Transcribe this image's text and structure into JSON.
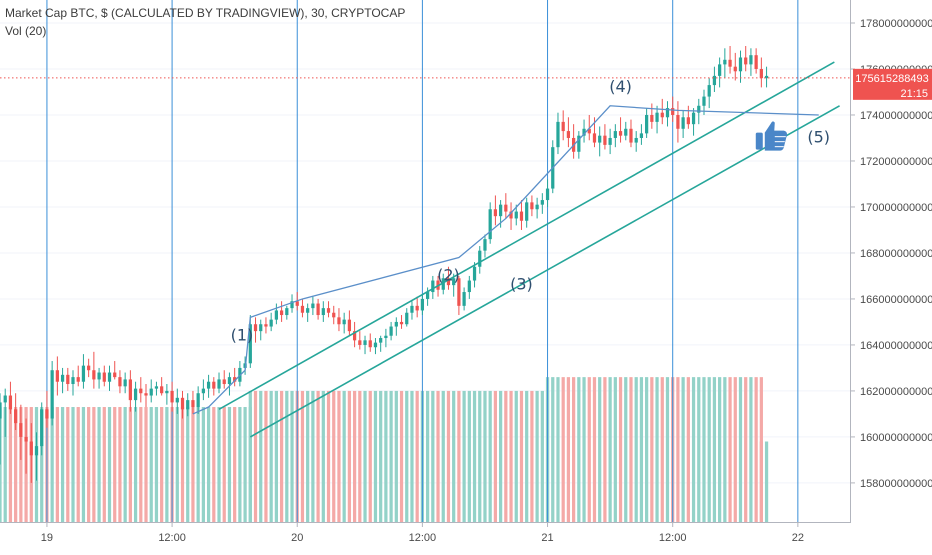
{
  "legend": {
    "title": "Market Cap BTC, $ (CALCULATED BY TRADINGVIEW), 30, CRYPTOCAP",
    "volume": "Vol (20)"
  },
  "price_tag": {
    "value": "175615288493",
    "countdown": "21:15"
  },
  "colors": {
    "up": "#26a69a",
    "down": "#ef5350",
    "vol_up": "#93d2c8",
    "vol_down": "#f4a9a7",
    "trend_line": "#26a69a",
    "wave_line": "#5b8fc9",
    "session_line": "#3a8fd8",
    "price_line": "#ef5350",
    "thumb": "#4a86c8"
  },
  "icons": [
    "thumbs-up-icon"
  ],
  "chart_data": {
    "type": "candlestick",
    "y_axis": {
      "ticks": [
        158000000000,
        160000000000,
        162000000000,
        164000000000,
        166000000000,
        168000000000,
        170000000000,
        172000000000,
        174000000000,
        176000000000,
        178000000000
      ],
      "tick_labels": [
        "158000000000",
        "160000000000",
        "162000000000",
        "164000000000",
        "166000000000",
        "168000000000",
        "170000000000",
        "172000000000",
        "174000000000",
        "176000000000",
        "178000000000"
      ],
      "range": [
        156300000000,
        179000000000
      ]
    },
    "x_axis": {
      "tick_labels": [
        "19",
        "12:00",
        "20",
        "12:00",
        "21",
        "12:00",
        "22"
      ],
      "tick_hours": [
        24,
        36,
        48,
        60,
        72,
        84,
        96
      ],
      "range_hours": [
        19.5,
        101
      ]
    },
    "last_price": 175615288493,
    "candles": [
      [
        19.5,
        160.8,
        161.9,
        158.8,
        161.5
      ],
      [
        20.0,
        161.5,
        162.1,
        160.0,
        161.8
      ],
      [
        20.5,
        161.8,
        162.4,
        161.0,
        161.2
      ],
      [
        21.0,
        161.2,
        161.9,
        160.3,
        160.6
      ],
      [
        21.5,
        160.6,
        161.4,
        159.0,
        160.0
      ],
      [
        22.0,
        160.0,
        160.8,
        158.4,
        159.8
      ],
      [
        22.5,
        159.8,
        160.6,
        158.0,
        159.2
      ],
      [
        23.0,
        159.2,
        160.2,
        158.1,
        159.6
      ],
      [
        23.5,
        159.6,
        161.5,
        159.2,
        161.2
      ],
      [
        24.0,
        161.2,
        162.0,
        160.4,
        160.8
      ],
      [
        24.5,
        160.8,
        163.3,
        160.5,
        162.9
      ],
      [
        25.0,
        162.9,
        163.5,
        161.8,
        162.4
      ],
      [
        25.5,
        162.4,
        163.0,
        161.9,
        162.7
      ],
      [
        26.0,
        162.7,
        163.0,
        162.0,
        162.3
      ],
      [
        26.5,
        162.3,
        162.9,
        161.8,
        162.6
      ],
      [
        27.0,
        162.6,
        163.1,
        162.2,
        162.4
      ],
      [
        27.5,
        162.4,
        163.6,
        162.1,
        163.1
      ],
      [
        28.0,
        163.1,
        163.4,
        162.6,
        162.9
      ],
      [
        28.5,
        162.9,
        163.7,
        162.1,
        162.5
      ],
      [
        29.0,
        162.5,
        163.0,
        162.1,
        162.8
      ],
      [
        29.5,
        162.8,
        163.1,
        162.2,
        162.4
      ],
      [
        30.0,
        162.4,
        163.1,
        162.0,
        162.8
      ],
      [
        30.5,
        162.8,
        163.3,
        162.5,
        162.6
      ],
      [
        31.0,
        162.6,
        162.9,
        161.9,
        162.2
      ],
      [
        31.5,
        162.2,
        162.8,
        161.9,
        162.5
      ],
      [
        32.0,
        162.5,
        162.9,
        161.1,
        161.6
      ],
      [
        32.5,
        161.6,
        162.4,
        161.1,
        162.1
      ],
      [
        33.0,
        162.1,
        162.6,
        161.5,
        161.9
      ],
      [
        33.5,
        161.9,
        162.3,
        161.3,
        161.8
      ],
      [
        34.0,
        161.8,
        162.5,
        161.5,
        162.1
      ],
      [
        34.5,
        162.1,
        162.4,
        161.8,
        162.2
      ],
      [
        35.0,
        162.2,
        162.6,
        161.8,
        161.9
      ],
      [
        35.5,
        161.9,
        162.3,
        161.4,
        162.0
      ],
      [
        36.0,
        162.0,
        162.4,
        161.1,
        161.5
      ],
      [
        36.5,
        161.5,
        162.1,
        161.0,
        161.7
      ],
      [
        37.0,
        161.7,
        162.0,
        160.8,
        161.2
      ],
      [
        37.5,
        161.2,
        161.9,
        160.9,
        161.6
      ],
      [
        38.0,
        161.6,
        162.0,
        161.0,
        161.3
      ],
      [
        38.5,
        161.3,
        162.2,
        161.0,
        161.9
      ],
      [
        39.0,
        161.9,
        162.5,
        161.6,
        162.1
      ],
      [
        39.5,
        162.1,
        162.7,
        161.7,
        162.4
      ],
      [
        40.0,
        162.4,
        162.6,
        161.8,
        162.1
      ],
      [
        40.5,
        162.1,
        162.8,
        161.9,
        162.5
      ],
      [
        41.0,
        162.5,
        162.9,
        162.1,
        162.3
      ],
      [
        41.5,
        162.3,
        162.8,
        161.8,
        162.6
      ],
      [
        42.0,
        162.6,
        163.0,
        162.2,
        162.4
      ],
      [
        42.5,
        162.4,
        163.3,
        162.2,
        163.0
      ],
      [
        43.0,
        163.0,
        163.5,
        162.7,
        163.2
      ],
      [
        43.5,
        163.2,
        165.3,
        163.0,
        164.9
      ],
      [
        44.0,
        164.9,
        165.2,
        164.1,
        164.6
      ],
      [
        44.5,
        164.6,
        165.1,
        164.2,
        164.9
      ],
      [
        45.0,
        164.9,
        165.2,
        164.5,
        164.8
      ],
      [
        45.5,
        164.8,
        165.4,
        164.6,
        165.1
      ],
      [
        46.0,
        165.1,
        165.8,
        164.9,
        165.5
      ],
      [
        46.5,
        165.5,
        165.9,
        165.0,
        165.3
      ],
      [
        47.0,
        165.3,
        165.7,
        165.1,
        165.6
      ],
      [
        47.5,
        165.6,
        166.2,
        165.4,
        165.9
      ],
      [
        48.0,
        165.9,
        166.3,
        165.5,
        165.7
      ],
      [
        48.5,
        165.7,
        166.0,
        165.2,
        165.4
      ],
      [
        49.0,
        165.4,
        165.8,
        165.0,
        165.6
      ],
      [
        49.5,
        165.6,
        166.1,
        165.3,
        165.8
      ],
      [
        50.0,
        165.8,
        166.0,
        165.1,
        165.3
      ],
      [
        50.5,
        165.3,
        165.9,
        165.0,
        165.6
      ],
      [
        51.0,
        165.6,
        165.9,
        165.2,
        165.4
      ],
      [
        51.5,
        165.4,
        165.7,
        164.9,
        165.2
      ],
      [
        52.0,
        165.2,
        165.6,
        164.6,
        164.9
      ],
      [
        52.5,
        164.9,
        165.4,
        164.5,
        165.1
      ],
      [
        53.0,
        165.1,
        165.5,
        164.4,
        164.6
      ],
      [
        53.5,
        164.6,
        165.0,
        163.9,
        164.2
      ],
      [
        54.0,
        164.2,
        164.6,
        163.8,
        164.0
      ],
      [
        54.5,
        164.0,
        164.4,
        163.6,
        164.2
      ],
      [
        55.0,
        164.2,
        164.5,
        163.7,
        163.9
      ],
      [
        55.5,
        163.9,
        164.3,
        163.6,
        164.1
      ],
      [
        56.0,
        164.1,
        164.4,
        163.7,
        164.3
      ],
      [
        56.5,
        164.3,
        164.7,
        163.9,
        164.4
      ],
      [
        57.0,
        164.4,
        165.0,
        164.2,
        164.8
      ],
      [
        57.5,
        164.8,
        165.2,
        164.4,
        165.0
      ],
      [
        58.0,
        165.0,
        165.3,
        164.7,
        164.9
      ],
      [
        58.5,
        164.9,
        165.6,
        164.8,
        165.4
      ],
      [
        59.0,
        165.4,
        165.9,
        165.1,
        165.7
      ],
      [
        59.5,
        165.7,
        166.1,
        165.2,
        165.5
      ],
      [
        60.0,
        165.5,
        166.2,
        165.3,
        166.0
      ],
      [
        60.5,
        166.0,
        166.5,
        165.7,
        166.3
      ],
      [
        61.0,
        166.3,
        167.0,
        166.0,
        166.8
      ],
      [
        61.5,
        166.8,
        167.0,
        166.1,
        166.4
      ],
      [
        62.0,
        166.4,
        167.1,
        166.2,
        166.9
      ],
      [
        62.5,
        166.9,
        167.4,
        166.4,
        166.6
      ],
      [
        63.0,
        166.6,
        167.1,
        166.1,
        166.9
      ],
      [
        63.5,
        166.9,
        167.0,
        165.3,
        165.7
      ],
      [
        64.0,
        165.7,
        166.5,
        165.5,
        166.3
      ],
      [
        64.5,
        166.3,
        167.0,
        166.0,
        166.8
      ],
      [
        65.0,
        166.8,
        167.6,
        166.5,
        167.4
      ],
      [
        65.5,
        167.4,
        168.3,
        167.1,
        168.1
      ],
      [
        66.0,
        168.1,
        168.8,
        167.8,
        168.6
      ],
      [
        66.5,
        168.6,
        170.2,
        168.4,
        169.9
      ],
      [
        67.0,
        169.9,
        170.5,
        169.2,
        169.6
      ],
      [
        67.5,
        169.6,
        170.3,
        169.1,
        170.1
      ],
      [
        68.0,
        170.1,
        170.6,
        169.5,
        169.8
      ],
      [
        68.5,
        169.8,
        170.2,
        169.0,
        169.5
      ],
      [
        69.0,
        169.5,
        170.1,
        169.2,
        169.8
      ],
      [
        69.5,
        169.8,
        170.3,
        169.0,
        169.4
      ],
      [
        70.0,
        169.4,
        170.4,
        169.1,
        170.2
      ],
      [
        70.5,
        170.2,
        170.5,
        169.6,
        169.9
      ],
      [
        71.0,
        169.9,
        170.4,
        169.5,
        170.1
      ],
      [
        71.5,
        170.1,
        170.6,
        169.7,
        170.3
      ],
      [
        72.0,
        170.3,
        171.2,
        170.0,
        170.8
      ],
      [
        72.5,
        170.8,
        172.9,
        170.6,
        172.6
      ],
      [
        73.0,
        172.6,
        174.1,
        172.3,
        173.7
      ],
      [
        73.5,
        173.7,
        174.2,
        172.9,
        173.3
      ],
      [
        74.0,
        173.3,
        173.9,
        172.6,
        173.0
      ],
      [
        74.5,
        173.0,
        173.6,
        172.1,
        172.4
      ],
      [
        75.0,
        172.4,
        173.3,
        172.1,
        173.1
      ],
      [
        75.5,
        173.1,
        173.8,
        172.8,
        173.4
      ],
      [
        76.0,
        173.4,
        174.0,
        172.9,
        173.2
      ],
      [
        76.5,
        173.2,
        173.9,
        172.6,
        172.8
      ],
      [
        77.0,
        172.8,
        173.5,
        172.2,
        173.1
      ],
      [
        77.5,
        173.1,
        173.6,
        172.5,
        172.7
      ],
      [
        78.0,
        172.7,
        173.4,
        172.3,
        173.0
      ],
      [
        78.5,
        173.0,
        173.6,
        172.6,
        173.3
      ],
      [
        79.0,
        173.3,
        173.9,
        172.8,
        173.1
      ],
      [
        79.5,
        173.1,
        173.7,
        172.9,
        173.4
      ],
      [
        80.0,
        173.4,
        173.8,
        172.6,
        172.8
      ],
      [
        80.5,
        172.8,
        173.3,
        172.4,
        173.0
      ],
      [
        81.0,
        173.0,
        173.6,
        172.7,
        173.2
      ],
      [
        81.5,
        173.2,
        174.3,
        173.0,
        174.0
      ],
      [
        82.0,
        174.0,
        174.5,
        173.4,
        173.7
      ],
      [
        82.5,
        173.7,
        174.4,
        173.2,
        174.1
      ],
      [
        83.0,
        174.1,
        174.7,
        173.6,
        173.9
      ],
      [
        83.5,
        173.9,
        174.6,
        173.5,
        174.3
      ],
      [
        84.0,
        174.3,
        174.8,
        173.7,
        174.0
      ],
      [
        84.5,
        174.0,
        174.6,
        172.8,
        173.4
      ],
      [
        85.0,
        173.4,
        174.2,
        173.0,
        173.9
      ],
      [
        85.5,
        173.9,
        174.4,
        173.4,
        173.6
      ],
      [
        86.0,
        173.6,
        174.3,
        173.1,
        174.1
      ],
      [
        86.5,
        174.1,
        174.7,
        173.6,
        174.4
      ],
      [
        87.0,
        174.4,
        175.1,
        174.0,
        174.8
      ],
      [
        87.5,
        174.8,
        175.6,
        174.3,
        175.3
      ],
      [
        88.0,
        175.3,
        176.1,
        175.0,
        175.7
      ],
      [
        88.5,
        175.7,
        176.5,
        175.2,
        176.2
      ],
      [
        89.0,
        176.2,
        176.9,
        175.6,
        176.4
      ],
      [
        89.5,
        176.4,
        177.0,
        175.8,
        176.1
      ],
      [
        90.0,
        176.1,
        176.7,
        175.5,
        175.9
      ],
      [
        90.5,
        175.9,
        176.8,
        175.4,
        176.5
      ],
      [
        91.0,
        176.5,
        177.0,
        175.9,
        176.2
      ],
      [
        91.5,
        176.2,
        176.9,
        175.7,
        176.6
      ],
      [
        92.0,
        176.6,
        176.9,
        175.8,
        176.0
      ],
      [
        92.5,
        176.0,
        176.5,
        175.2,
        175.6
      ],
      [
        93.0,
        175.6,
        176.1,
        175.2,
        175.7
      ]
    ],
    "volume": [
      {
        "from_hour": 19.5,
        "to_hour": 43.5,
        "level": 161.3
      },
      {
        "from_hour": 43.5,
        "to_hour": 72.0,
        "level": 162.0
      },
      {
        "from_hour": 72.0,
        "to_hour": 92.5,
        "level": 162.6
      },
      {
        "from_hour": 92.5,
        "to_hour": 93.0,
        "level": 159.8
      }
    ],
    "trend_lines": [
      {
        "name": "upper-channel",
        "from": [
          40.5,
          161.2
        ],
        "to": [
          99.5,
          176.3
        ]
      },
      {
        "name": "lower-channel",
        "from": [
          43.5,
          160.0
        ],
        "to": [
          100.0,
          174.4
        ]
      }
    ],
    "wave_path": [
      [
        38.0,
        161.0
      ],
      [
        39.5,
        161.3
      ],
      [
        43.0,
        162.9
      ],
      [
        43.5,
        165.2
      ],
      [
        48.5,
        166.0
      ],
      [
        63.5,
        167.8
      ],
      [
        68.0,
        169.5
      ],
      [
        78.0,
        174.4
      ],
      [
        84.5,
        174.2
      ],
      [
        98.0,
        174.0
      ]
    ],
    "wave_labels": [
      {
        "text": "(1)",
        "at": [
          42.7,
          164.2
        ]
      },
      {
        "text": "(2)",
        "at": [
          62.5,
          166.8
        ]
      },
      {
        "text": "(3)",
        "at": [
          69.5,
          166.4
        ]
      },
      {
        "text": "(4)",
        "at": [
          79.0,
          175.0
        ]
      },
      {
        "text": "(5)",
        "at": [
          98.0,
          172.8
        ]
      }
    ],
    "thumb_at": [
      93.5,
      173.1
    ]
  }
}
